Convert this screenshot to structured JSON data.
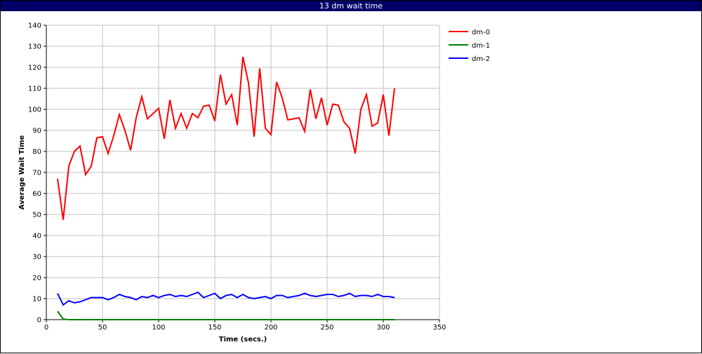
{
  "window": {
    "title": "13 dm wait time"
  },
  "chart_data": {
    "type": "line",
    "title": "13 dm wait time",
    "xlabel": "Time (secs.)",
    "ylabel": "Average Wait Time",
    "xlim": [
      0,
      350
    ],
    "ylim": [
      0,
      140
    ],
    "xticks": [
      0,
      50,
      100,
      150,
      200,
      250,
      300,
      350
    ],
    "yticks": [
      0,
      10,
      20,
      30,
      40,
      50,
      60,
      70,
      80,
      90,
      100,
      110,
      120,
      130,
      140
    ],
    "grid": true,
    "legend_position": "top-right (outside plot)",
    "series": [
      {
        "name": "dm-0",
        "color": "#ff0000",
        "x": [
          10,
          15,
          20,
          25,
          30,
          35,
          40,
          45,
          50,
          55,
          60,
          65,
          70,
          75,
          80,
          85,
          90,
          95,
          100,
          105,
          110,
          115,
          120,
          125,
          130,
          135,
          140,
          145,
          150,
          155,
          160,
          165,
          170,
          175,
          180,
          185,
          190,
          195,
          200,
          205,
          210,
          215,
          220,
          225,
          230,
          235,
          240,
          245,
          250,
          255,
          260,
          265,
          270,
          275,
          280,
          285,
          290,
          295,
          300,
          305,
          310
        ],
        "values": [
          67,
          47.5,
          73,
          80,
          82.5,
          69,
          73,
          86.5,
          87,
          79,
          87.5,
          97.5,
          90,
          80.5,
          96,
          106,
          95.5,
          98,
          100.5,
          86,
          104.5,
          91,
          98,
          91,
          98,
          96,
          101.5,
          102,
          94.5,
          116.5,
          102.5,
          107,
          92.5,
          125,
          112.5,
          87,
          119.5,
          91,
          88,
          113,
          105.5,
          95,
          95.5,
          96,
          89.5,
          109.5,
          95.5,
          105.5,
          92.5,
          102.5,
          102,
          94,
          91,
          79,
          100,
          107,
          92,
          93.5,
          107,
          87.5,
          110
        ]
      },
      {
        "name": "dm-1",
        "color": "#008000",
        "x": [
          10,
          15,
          20,
          25,
          30,
          35,
          40,
          45,
          50,
          55,
          60,
          65,
          70,
          75,
          80,
          85,
          90,
          95,
          100,
          105,
          110,
          115,
          120,
          125,
          130,
          135,
          140,
          145,
          150,
          155,
          160,
          165,
          170,
          175,
          180,
          185,
          190,
          195,
          200,
          205,
          210,
          215,
          220,
          225,
          230,
          235,
          240,
          245,
          250,
          255,
          260,
          265,
          270,
          275,
          280,
          285,
          290,
          295,
          300,
          305,
          310
        ],
        "values": [
          4,
          0.3,
          0,
          0,
          0,
          0,
          0,
          0,
          0,
          0,
          0,
          0,
          0,
          0,
          0,
          0,
          0,
          0,
          0,
          0,
          0,
          0,
          0,
          0,
          0,
          0,
          0,
          0,
          0,
          0,
          0,
          0,
          0,
          0,
          0,
          0,
          0,
          0,
          0,
          0,
          0,
          0,
          0,
          0,
          0,
          0,
          0,
          0,
          0,
          0,
          0,
          0,
          0,
          0,
          0,
          0,
          0,
          0,
          0,
          0,
          0
        ]
      },
      {
        "name": "dm-2",
        "color": "#0000ff",
        "x": [
          10,
          15,
          20,
          25,
          30,
          35,
          40,
          45,
          50,
          55,
          60,
          65,
          70,
          75,
          80,
          85,
          90,
          95,
          100,
          105,
          110,
          115,
          120,
          125,
          130,
          135,
          140,
          145,
          150,
          155,
          160,
          165,
          170,
          175,
          180,
          185,
          190,
          195,
          200,
          205,
          210,
          215,
          220,
          225,
          230,
          235,
          240,
          245,
          250,
          255,
          260,
          265,
          270,
          275,
          280,
          285,
          290,
          295,
          300,
          305,
          310
        ],
        "values": [
          12.5,
          7,
          9,
          8,
          8.5,
          9.5,
          10.5,
          10.5,
          10.5,
          9.5,
          10.5,
          12,
          11,
          10.5,
          9.5,
          11,
          10.5,
          11.5,
          10.5,
          11.5,
          12,
          11,
          11.5,
          11,
          12,
          13,
          10.5,
          11.5,
          12.5,
          10,
          11.5,
          12,
          10.5,
          12,
          10.5,
          10,
          10.5,
          11,
          10,
          11.5,
          11.5,
          10.5,
          11,
          11.5,
          12.5,
          11.5,
          11,
          11.5,
          12,
          12,
          11,
          11.5,
          12.5,
          11,
          11.5,
          11.5,
          11,
          12,
          11,
          11,
          10.5
        ]
      }
    ]
  }
}
